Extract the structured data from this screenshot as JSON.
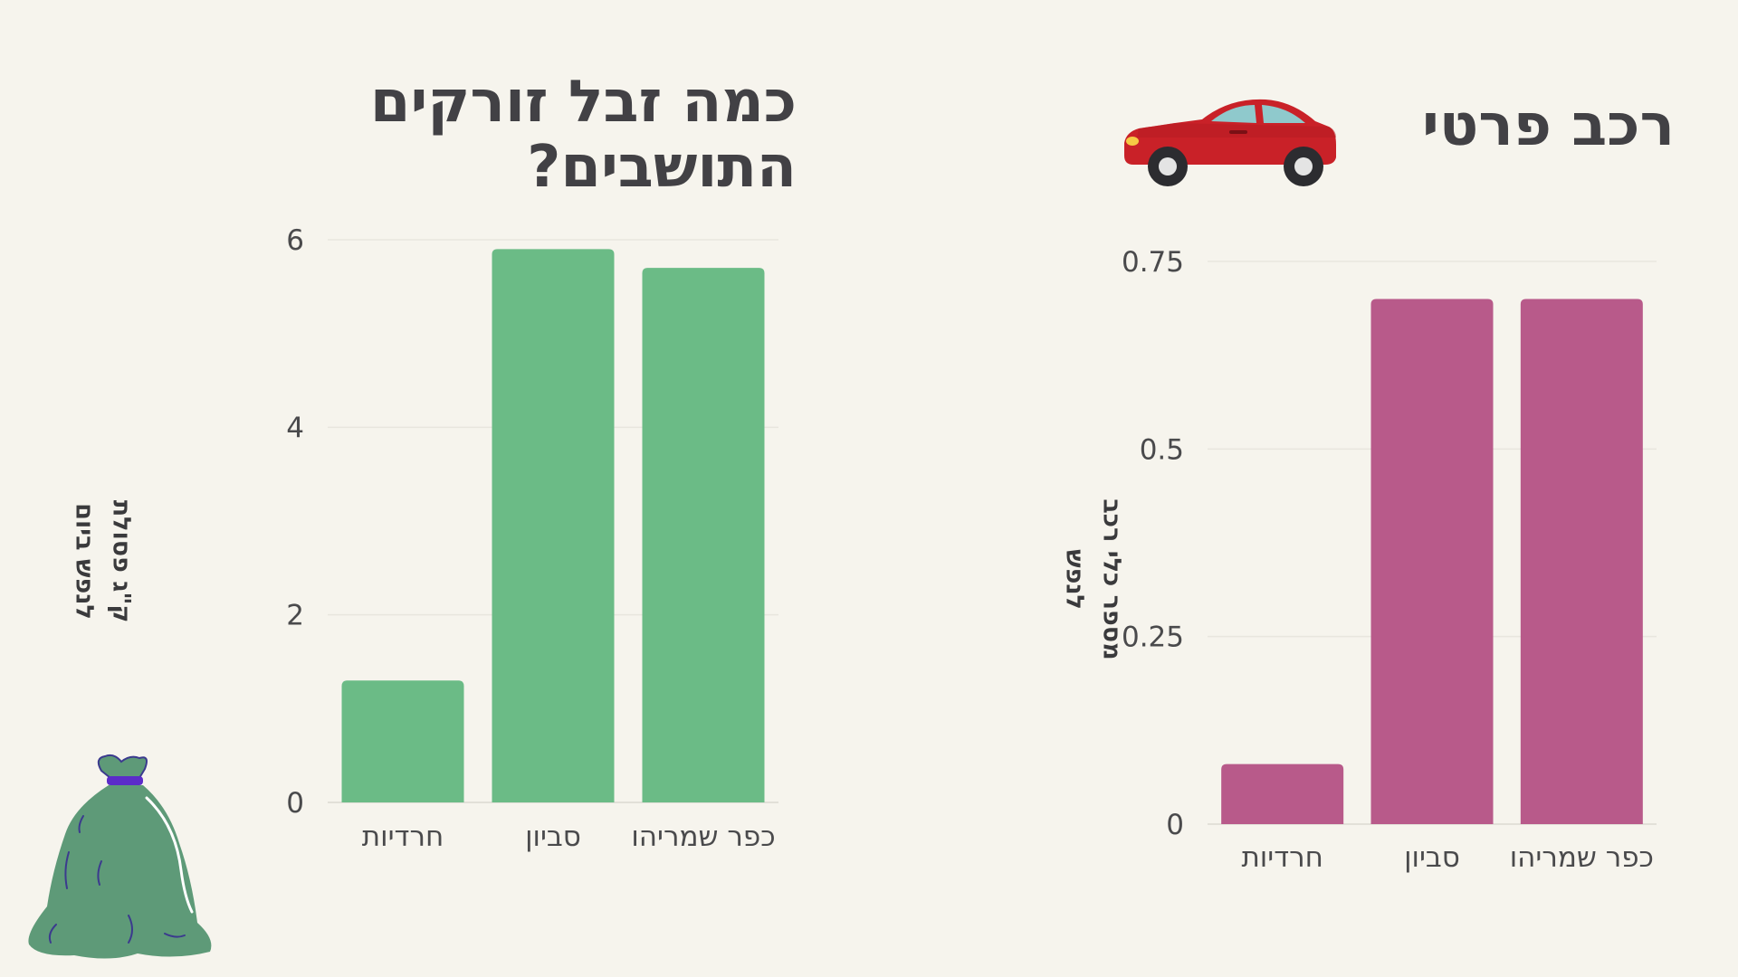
{
  "charts": [
    {
      "id": "waste",
      "title": "כמה זבל זורקים התושבים?",
      "ylabel": "ק\"ג פסולת לנפש ביום",
      "icon": "garbage-bag-icon"
    },
    {
      "id": "car",
      "title": "רכב פרטי",
      "ylabel": "מספר כלי רכב לנפש",
      "icon": "car-icon"
    }
  ],
  "colors": {
    "background": "#f6f4ed",
    "waste_bars": "#6bbb86",
    "car_bars": "#b85a8a",
    "title_text": "#424145"
  },
  "chart_data": [
    {
      "type": "bar",
      "title": "כמה זבל זורקים התושבים?",
      "xlabel": "",
      "ylabel": "ק\"ג פסולת לנפש ביום",
      "categories": [
        "חרדיות",
        "סביון",
        "כפר שמריהו"
      ],
      "values": [
        1.3,
        5.9,
        5.7
      ],
      "ylim": [
        0,
        6
      ],
      "yticks": [
        0,
        2,
        4,
        6
      ],
      "ytick_labels": [
        "0",
        "2",
        "4",
        "6"
      ],
      "grid": true,
      "color": "#6bbb86"
    },
    {
      "type": "bar",
      "title": "רכב פרטי",
      "xlabel": "",
      "ylabel": "מספר כלי רכב לנפש",
      "categories": [
        "חרדיות",
        "סביון",
        "כפר שמריהו"
      ],
      "values": [
        0.08,
        0.7,
        0.7
      ],
      "ylim": [
        0,
        0.75
      ],
      "yticks": [
        0,
        0.25,
        0.5,
        0.75
      ],
      "ytick_labels": [
        "0",
        "0.25",
        "0.5",
        "0.75"
      ],
      "grid": true,
      "color": "#b85a8a"
    }
  ]
}
